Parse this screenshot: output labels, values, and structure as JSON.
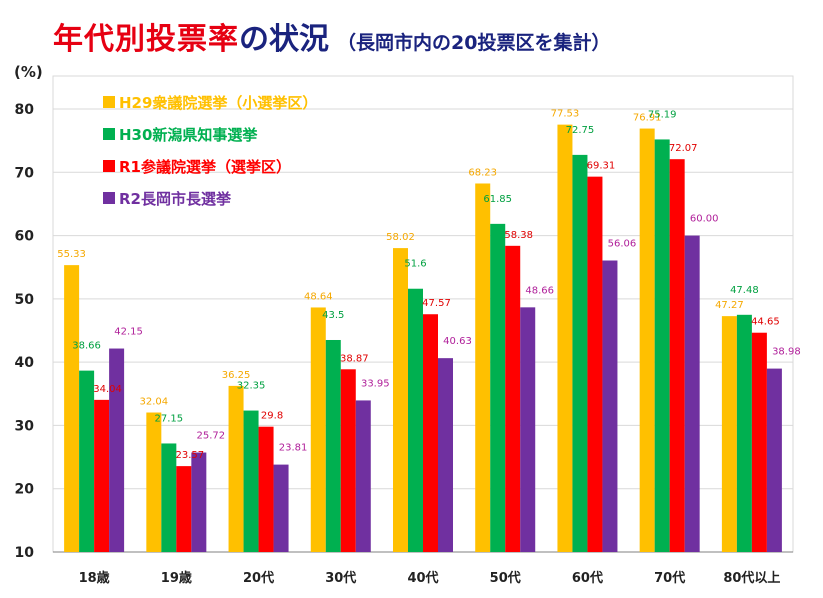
{
  "title": {
    "main": "年代別投票率",
    "sub": "の状況",
    "note": "（長岡市内の20投票区を集計）"
  },
  "chart_data": {
    "type": "bar",
    "ylabel": "(%)",
    "ylim": [
      10,
      80
    ],
    "yticks": [
      10,
      20,
      30,
      40,
      50,
      60,
      70,
      80
    ],
    "grid": true,
    "legend_position": "top-left",
    "categories": [
      "18歳",
      "19歳",
      "20代",
      "30代",
      "40代",
      "50代",
      "60代",
      "70代",
      "80代以上"
    ],
    "series": [
      {
        "name": "H29衆議院選挙（小選挙区）",
        "color": "#ffc000",
        "label_color": "#f5a800",
        "values": [
          55.33,
          32.04,
          36.25,
          48.64,
          58.02,
          68.23,
          77.53,
          76.91,
          47.27
        ],
        "labels": [
          "55.33",
          "32.04",
          "36.25",
          "48.64",
          "58.02",
          "68.23",
          "77.53",
          "76.91",
          "47.27"
        ]
      },
      {
        "name": "H30新潟県知事選挙",
        "color": "#00b050",
        "label_color": "#00a040",
        "values": [
          38.66,
          27.15,
          32.35,
          43.5,
          51.6,
          61.85,
          72.75,
          75.19,
          47.48
        ],
        "labels": [
          "38.66",
          "27.15",
          "32.35",
          "43.5",
          "51.6",
          "61.85",
          "72.75",
          "75.19",
          "47.48"
        ]
      },
      {
        "name": "R1参議院選挙（選挙区）",
        "color": "#ff0000",
        "label_color": "#e00000",
        "values": [
          34.04,
          23.57,
          29.8,
          38.87,
          47.57,
          58.38,
          69.31,
          72.07,
          44.65
        ],
        "labels": [
          "34.04",
          "23.57",
          "29.8",
          "38.87",
          "47.57",
          "58.38",
          "69.31",
          "72.07",
          "44.65"
        ]
      },
      {
        "name": "R2長岡市長選挙",
        "color": "#7030a0",
        "label_color": "#b0209a",
        "values": [
          42.15,
          25.72,
          23.81,
          33.95,
          40.63,
          48.66,
          56.06,
          60.0,
          38.98
        ],
        "labels": [
          "42.15",
          "25.72",
          "23.81",
          "33.95",
          "40.63",
          "48.66",
          "56.06",
          "60.00",
          "38.98"
        ]
      }
    ]
  }
}
